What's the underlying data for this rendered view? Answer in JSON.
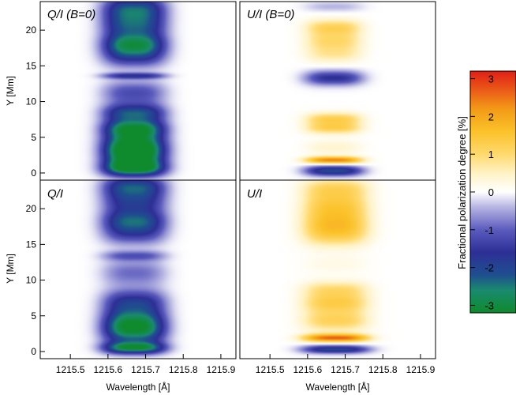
{
  "chart_data": {
    "type": "heatmap",
    "x_label": "Wavelength [Å]",
    "y_label": "Y [Mm]",
    "x_ticks": [
      1215.5,
      1215.6,
      1215.7,
      1215.8,
      1215.9
    ],
    "x_tick_labels": [
      "1215.5",
      "1215.6",
      "1215.7",
      "1215.8",
      "1215.9"
    ],
    "y_ticks": [
      0,
      5,
      10,
      15,
      20
    ],
    "y_tick_labels": [
      "0",
      "5",
      "10",
      "15",
      "20"
    ],
    "xlim": [
      1215.42,
      1215.94
    ],
    "ylim": [
      -1,
      24
    ],
    "panels": [
      {
        "id": "QI_B0",
        "title": "Q/I (B=0)",
        "stokes": "Q",
        "center": 1215.67,
        "halfwidth": 0.065,
        "bands": [
          {
            "y": 0.6,
            "sigma": 0.8,
            "value": -2.6
          },
          {
            "y": 2.2,
            "sigma": 1.3,
            "value": -2.0
          },
          {
            "y": 4.0,
            "sigma": 1.5,
            "value": -2.8
          },
          {
            "y": 6.3,
            "sigma": 0.9,
            "value": -2.3
          },
          {
            "y": 8.4,
            "sigma": 0.9,
            "value": -2.1
          },
          {
            "y": 11.2,
            "sigma": 1.2,
            "value": -1.2
          },
          {
            "y": 13.6,
            "sigma": 0.3,
            "value": -1.5
          },
          {
            "y": 16.5,
            "sigma": 1.2,
            "value": -1.6
          },
          {
            "y": 18.2,
            "sigma": 1.1,
            "value": -2.2
          },
          {
            "y": 20.6,
            "sigma": 1.2,
            "value": -1.8
          },
          {
            "y": 23.0,
            "sigma": 1.3,
            "value": -2.2
          }
        ]
      },
      {
        "id": "UI_B0",
        "title": "U/I (B=0)",
        "stokes": "U",
        "center": 1215.67,
        "halfwidth": 0.06,
        "bands": [
          {
            "y": 0.3,
            "sigma": 0.5,
            "value": -2.1
          },
          {
            "y": 1.8,
            "sigma": 0.35,
            "value": 2.4
          },
          {
            "y": 3.6,
            "sigma": 0.7,
            "value": 0.4
          },
          {
            "y": 6.3,
            "sigma": 0.6,
            "value": 1.2
          },
          {
            "y": 7.6,
            "sigma": 0.6,
            "value": 1.2
          },
          {
            "y": 13.3,
            "sigma": 0.7,
            "value": -1.6
          },
          {
            "y": 16.5,
            "sigma": 0.8,
            "value": 0.6
          },
          {
            "y": 18.4,
            "sigma": 1.0,
            "value": 1.0
          },
          {
            "y": 20.4,
            "sigma": 0.8,
            "value": 1.1
          },
          {
            "y": 23.3,
            "sigma": 0.5,
            "value": -0.4
          }
        ]
      },
      {
        "id": "QI",
        "title": "Q/I",
        "stokes": "Q",
        "center": 1215.67,
        "halfwidth": 0.065,
        "bands": [
          {
            "y": 0.5,
            "sigma": 0.6,
            "value": -2.7
          },
          {
            "y": 2.4,
            "sigma": 1.2,
            "value": -1.7
          },
          {
            "y": 4.2,
            "sigma": 1.4,
            "value": -2.5
          },
          {
            "y": 7.0,
            "sigma": 1.2,
            "value": -1.6
          },
          {
            "y": 11.0,
            "sigma": 1.3,
            "value": -0.9
          },
          {
            "y": 13.4,
            "sigma": 0.5,
            "value": -1.0
          },
          {
            "y": 16.6,
            "sigma": 1.2,
            "value": -1.3
          },
          {
            "y": 18.4,
            "sigma": 1.1,
            "value": -1.8
          },
          {
            "y": 21.0,
            "sigma": 1.3,
            "value": -1.6
          },
          {
            "y": 23.2,
            "sigma": 1.1,
            "value": -1.9
          }
        ]
      },
      {
        "id": "UI",
        "title": "U/I",
        "stokes": "U",
        "center": 1215.675,
        "halfwidth": 0.07,
        "bands": [
          {
            "y": 0.3,
            "sigma": 0.4,
            "value": -2.0
          },
          {
            "y": 1.9,
            "sigma": 0.4,
            "value": 2.6
          },
          {
            "y": 4.2,
            "sigma": 1.0,
            "value": 1.1
          },
          {
            "y": 6.8,
            "sigma": 1.1,
            "value": 1.3
          },
          {
            "y": 8.8,
            "sigma": 0.8,
            "value": 0.8
          },
          {
            "y": 12.2,
            "sigma": 1.0,
            "value": 0.2
          },
          {
            "y": 16.3,
            "sigma": 1.2,
            "value": 1.1
          },
          {
            "y": 18.2,
            "sigma": 1.2,
            "value": 1.2
          },
          {
            "y": 20.4,
            "sigma": 1.2,
            "value": 1.2
          },
          {
            "y": 22.8,
            "sigma": 1.1,
            "value": 1.1
          }
        ]
      }
    ],
    "colorbar": {
      "label": "Fractional polarization degree [%]",
      "range": [
        -3.2,
        3.2
      ],
      "ticks": [
        3,
        2,
        1,
        0,
        -1,
        -2,
        -3
      ],
      "tick_labels": [
        "3",
        "2",
        "1",
        "0",
        "-1",
        "-2",
        "-3"
      ],
      "colormap": [
        {
          "v": -3.2,
          "color": "#0f8a2c"
        },
        {
          "v": -2.6,
          "color": "#1a8a6e"
        },
        {
          "v": -2.2,
          "color": "#1f4f8f"
        },
        {
          "v": -1.6,
          "color": "#2d2f96"
        },
        {
          "v": -1.0,
          "color": "#5b5bbe"
        },
        {
          "v": -0.4,
          "color": "#b7b5e2"
        },
        {
          "v": 0.0,
          "color": "#ffffff"
        },
        {
          "v": 0.5,
          "color": "#fff2c4"
        },
        {
          "v": 1.0,
          "color": "#ffd96e"
        },
        {
          "v": 1.6,
          "color": "#fbc22a"
        },
        {
          "v": 2.2,
          "color": "#f39a17"
        },
        {
          "v": 2.7,
          "color": "#ea5a17"
        },
        {
          "v": 3.2,
          "color": "#e01f17"
        }
      ]
    }
  }
}
